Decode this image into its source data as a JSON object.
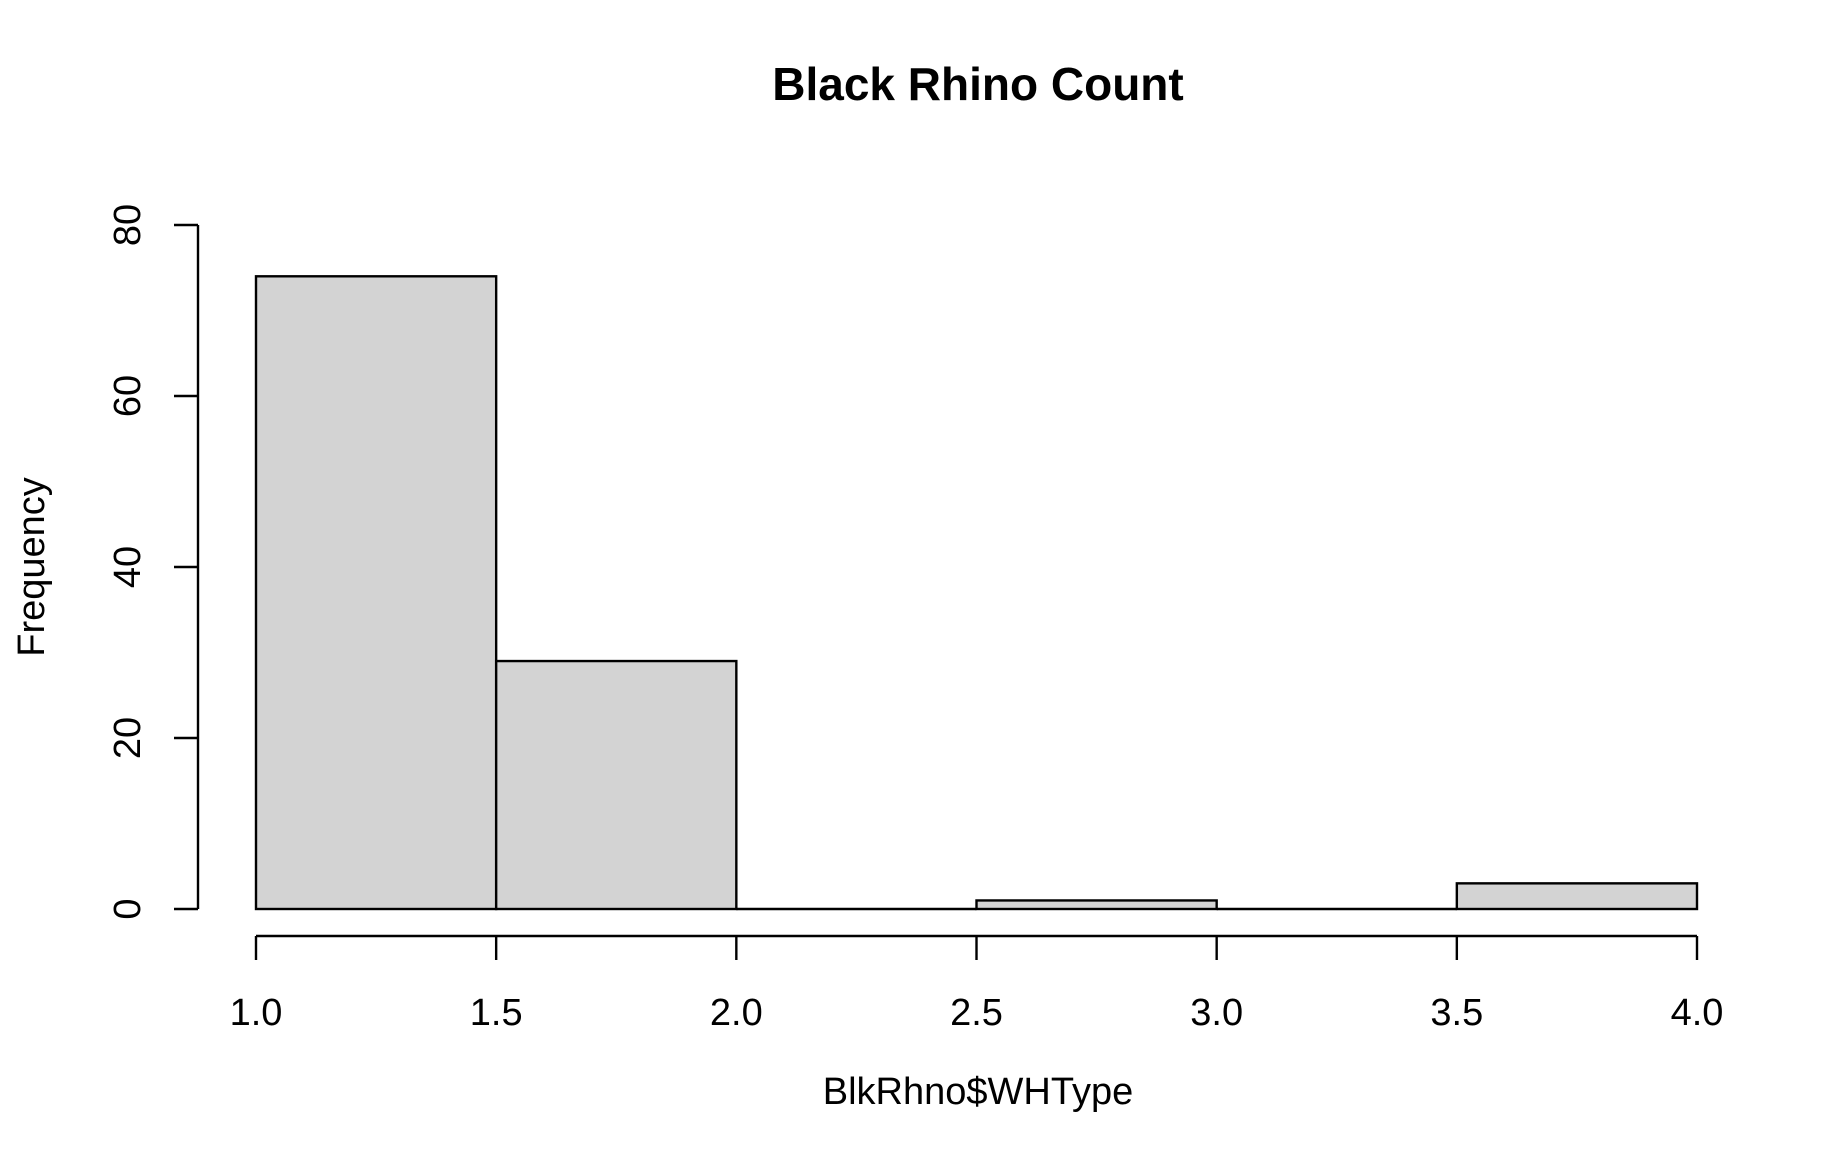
{
  "chart_data": {
    "type": "bar",
    "title": "Black Rhino Count",
    "xlabel": "BlkRhno$WHType",
    "ylabel": "Frequency",
    "bins": [
      {
        "start": 1.0,
        "end": 1.5,
        "value": 74
      },
      {
        "start": 1.5,
        "end": 2.0,
        "value": 29
      },
      {
        "start": 2.0,
        "end": 2.5,
        "value": 0
      },
      {
        "start": 2.5,
        "end": 3.0,
        "value": 1
      },
      {
        "start": 3.0,
        "end": 3.5,
        "value": 0
      },
      {
        "start": 3.5,
        "end": 4.0,
        "value": 3
      }
    ],
    "xticks": [
      "1.0",
      "1.5",
      "2.0",
      "2.5",
      "3.0",
      "3.5",
      "4.0"
    ],
    "yticks": [
      "0",
      "20",
      "40",
      "60",
      "80"
    ],
    "xlim": [
      1.0,
      4.0
    ],
    "ylim": [
      0,
      80
    ],
    "bar_color": "#d3d3d3",
    "edge_color": "#000000",
    "grid": false
  }
}
